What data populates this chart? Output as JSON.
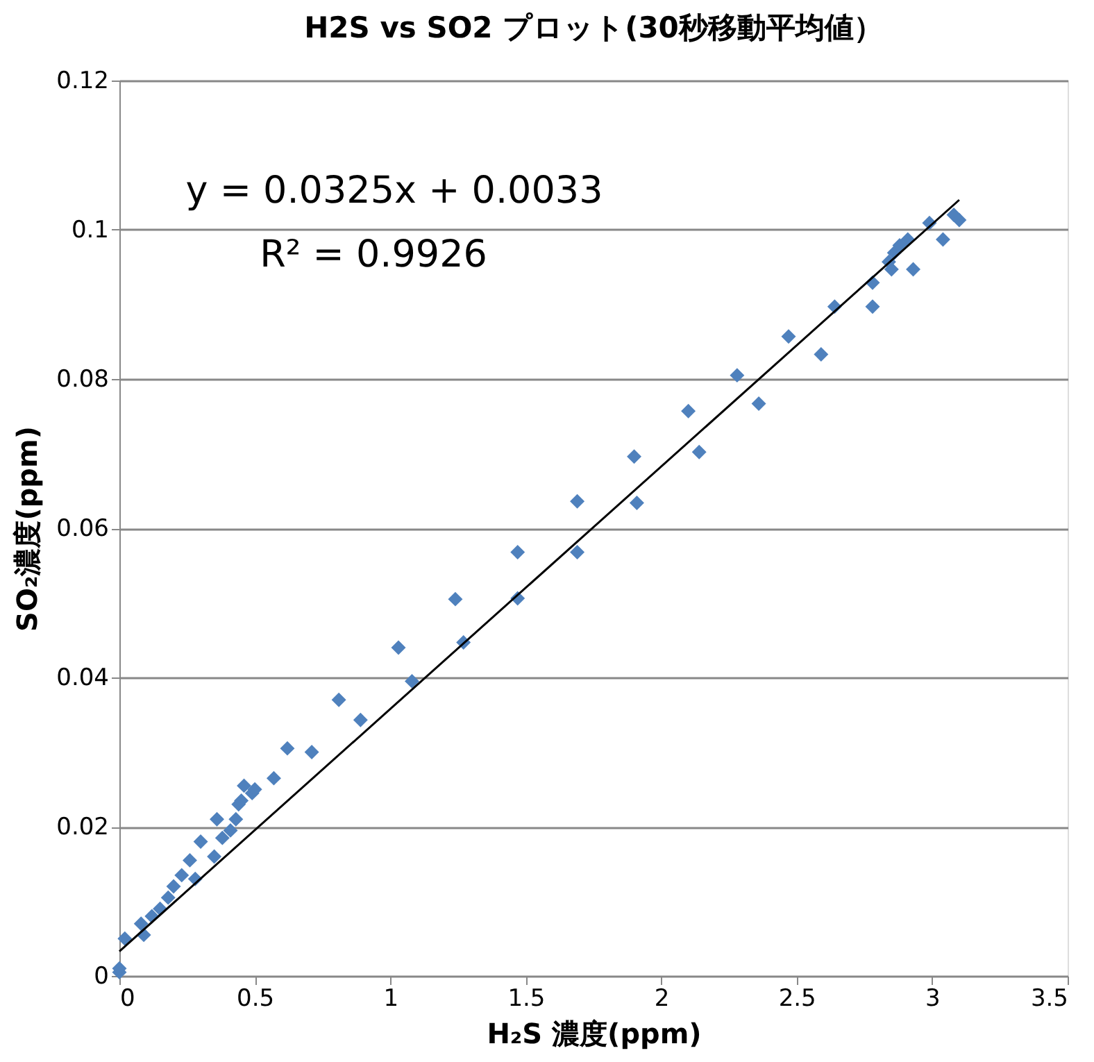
{
  "chart_data": {
    "type": "scatter",
    "title": "H2S vs SO2 プロット(30秒移動平均値）",
    "xlabel": "H₂S 濃度(ppm)",
    "ylabel": "SO₂濃度(ppm)",
    "annotations": [
      "y = 0.0325x + 0.0033",
      "R² = 0.9926"
    ],
    "series": [
      {
        "color": "#4f81bd",
        "marker": "diamond",
        "x": [
          0,
          0,
          0.02,
          0.08,
          0.09,
          0.12,
          0.15,
          0.18,
          0.2,
          0.23,
          0.26,
          0.28,
          0.3,
          0.35,
          0.36,
          0.38,
          0.41,
          0.43,
          0.44,
          0.45,
          0.46,
          0.49,
          0.5,
          0.57,
          0.62,
          0.71,
          0.81,
          0.89,
          1.03,
          1.08,
          1.24,
          1.27,
          1.47,
          1.47,
          1.69,
          1.69,
          1.9,
          1.91,
          2.1,
          2.14,
          2.28,
          2.36,
          2.47,
          2.59,
          2.64,
          2.78,
          2.78,
          2.84,
          2.85,
          2.86,
          2.88,
          2.91,
          2.93,
          2.99,
          3.04,
          3.08,
          3.1
        ],
        "values": [
          0.0005,
          0.001,
          0.005,
          0.007,
          0.0055,
          0.008,
          0.009,
          0.0105,
          0.012,
          0.0135,
          0.0155,
          0.013,
          0.018,
          0.016,
          0.021,
          0.0185,
          0.0195,
          0.021,
          0.023,
          0.0235,
          0.0255,
          0.0245,
          0.025,
          0.0265,
          0.0305,
          0.03,
          0.037,
          0.0343,
          0.044,
          0.0395,
          0.0505,
          0.0447,
          0.0568,
          0.0506,
          0.0636,
          0.0568,
          0.0696,
          0.0634,
          0.0757,
          0.0702,
          0.0805,
          0.0767,
          0.0857,
          0.0833,
          0.0897,
          0.0897,
          0.0929,
          0.0957,
          0.0947,
          0.0969,
          0.0979,
          0.0987,
          0.0947,
          0.1009,
          0.0987,
          0.102,
          0.1013
        ]
      },
      {
        "type": "line",
        "color": "#000000",
        "line_style": "solid",
        "marker": "none",
        "x": [
          0,
          3.1
        ],
        "values": [
          0.0033,
          0.104
        ]
      }
    ],
    "xlim": [
      0,
      3.5
    ],
    "xticks": [
      0,
      0.5,
      1,
      1.5,
      2,
      2.5,
      3,
      3.5
    ],
    "ylim": [
      0,
      0.12
    ],
    "yticks": [
      0,
      0.02,
      0.04,
      0.06,
      0.08,
      0.1,
      0.12
    ],
    "grid": "y"
  }
}
